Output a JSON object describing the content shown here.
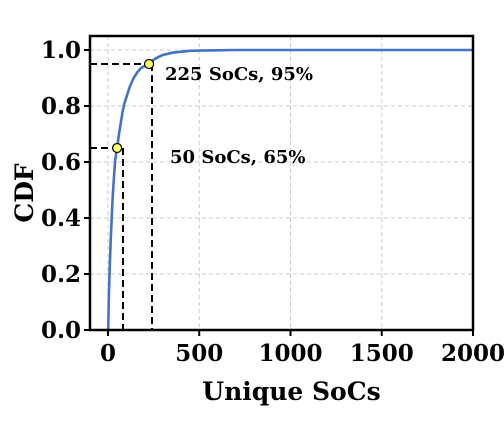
{
  "chart_data": {
    "type": "line",
    "xlabel": "Unique SoCs",
    "ylabel": "CDF",
    "xlim": [
      -100,
      2000
    ],
    "ylim": [
      0,
      1.05
    ],
    "x_ticks": [
      0,
      500,
      1000,
      1500,
      2000
    ],
    "y_ticks": [
      0.0,
      0.2,
      0.4,
      0.6,
      0.8,
      1.0
    ],
    "x_tick_labels": [
      "0",
      "500",
      "1000",
      "1500",
      "2000"
    ],
    "y_tick_labels": [
      "0.0",
      "0.2",
      "0.4",
      "0.6",
      "0.8",
      "1.0"
    ],
    "grid": true,
    "line_color": "#4472c4",
    "marker_color": "#ffff66",
    "series": [
      {
        "x": [
          1,
          5,
          10,
          15,
          20,
          25,
          30,
          35,
          40,
          45,
          50,
          60,
          70,
          80,
          90,
          100,
          120,
          140,
          160,
          180,
          200,
          225,
          250,
          275,
          300,
          350,
          400,
          450,
          500,
          600,
          700,
          800,
          1000,
          1200,
          1500,
          1800,
          2000
        ],
        "y": [
          0.0,
          0.13,
          0.23,
          0.32,
          0.4,
          0.47,
          0.52,
          0.57,
          0.61,
          0.63,
          0.65,
          0.7,
          0.74,
          0.78,
          0.81,
          0.83,
          0.87,
          0.9,
          0.92,
          0.935,
          0.943,
          0.95,
          0.965,
          0.975,
          0.982,
          0.99,
          0.994,
          0.997,
          0.998,
          0.999,
          1.0,
          1.0,
          1.0,
          1.0,
          1.0,
          1.0,
          1.0
        ]
      }
    ],
    "annotations": [
      {
        "text": "225 SoCs, 95%",
        "x": 225,
        "y": 0.95
      },
      {
        "text": "50 SoCs, 65%",
        "x": 50,
        "y": 0.65
      }
    ]
  }
}
